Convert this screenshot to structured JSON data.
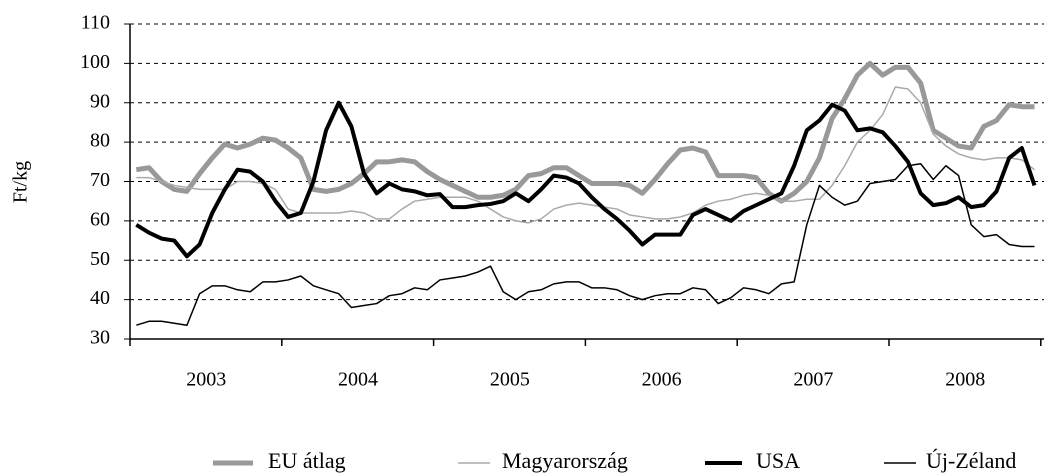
{
  "chart_data": {
    "type": "line",
    "y_label": "Ft/kg",
    "categories": [
      null,
      null,
      null,
      null,
      null,
      null,
      "2003",
      null,
      null,
      null,
      null,
      null,
      null,
      null,
      null,
      null,
      null,
      null,
      "2004",
      null,
      null,
      null,
      null,
      null,
      null,
      null,
      null,
      null,
      null,
      null,
      "2005",
      null,
      null,
      null,
      null,
      null,
      null,
      null,
      null,
      null,
      null,
      null,
      "2006",
      null,
      null,
      null,
      null,
      null,
      null,
      null,
      null,
      null,
      null,
      null,
      "2007",
      null,
      null,
      null,
      null,
      null,
      null,
      null,
      null,
      null,
      null,
      null,
      "2008",
      null,
      null,
      null,
      null,
      null
    ],
    "ylim": [
      30,
      110
    ],
    "yticks": [
      30,
      40,
      50,
      60,
      70,
      80,
      90,
      100,
      110
    ],
    "grid": true,
    "legend": "bottom",
    "series": [
      {
        "name": "EU átlag",
        "color": "#999999",
        "width": 5,
        "values": [
          73,
          73.5,
          70,
          68,
          67.5,
          72,
          76,
          79.5,
          78.5,
          79.5,
          81,
          80.5,
          78.5,
          76,
          68,
          67.5,
          68,
          69.5,
          72,
          75,
          75,
          75.5,
          75,
          72.5,
          70.5,
          69,
          67.5,
          66,
          66,
          66.5,
          68,
          71.5,
          72,
          73.5,
          73.5,
          71.5,
          69.5,
          69.5,
          69.5,
          69,
          67,
          70.5,
          74.5,
          78,
          78.5,
          77.5,
          71.5,
          71.5,
          71.5,
          71,
          67,
          65,
          67,
          70,
          76,
          86,
          91,
          97,
          100,
          97,
          99,
          99,
          95,
          83,
          81,
          79,
          78.5,
          84,
          85.5,
          89.5,
          89,
          89
        ]
      },
      {
        "name": "Magyarország",
        "color": "#aaaaaa",
        "width": 1.5,
        "values": [
          71,
          71,
          70,
          69,
          68.5,
          68,
          68,
          68,
          70,
          70,
          69.5,
          68,
          63,
          62,
          62,
          62,
          62,
          62.5,
          62,
          60.5,
          60.5,
          63,
          65,
          65.5,
          66,
          66,
          66,
          65,
          63,
          61,
          60,
          59.5,
          60.5,
          63,
          64,
          64.5,
          64,
          63.5,
          63,
          61.5,
          61,
          60.5,
          60.5,
          61,
          62,
          64,
          65,
          65.5,
          66.5,
          67,
          66.5,
          65,
          65,
          65.5,
          65.5,
          69,
          74,
          80,
          83,
          87,
          94,
          93.5,
          90,
          82,
          79,
          77,
          76,
          75.5,
          76,
          76,
          75.5,
          73
        ]
      },
      {
        "name": "USA",
        "color": "#000000",
        "width": 4,
        "values": [
          59,
          57,
          55.5,
          55,
          51,
          54,
          62,
          68,
          73,
          72.5,
          70,
          65,
          61,
          62,
          70,
          83,
          90,
          84,
          72,
          67,
          69.5,
          68,
          67.5,
          66.5,
          66.8,
          63.5,
          63.5,
          64,
          64.3,
          65,
          67,
          65,
          68,
          71.5,
          71,
          69.5,
          66,
          63,
          60.5,
          57.5,
          54,
          56.5,
          56.5,
          56.5,
          61.5,
          63,
          61.5,
          60,
          62.5,
          64,
          65.5,
          67,
          74,
          83,
          85.5,
          89.5,
          88,
          83,
          83.5,
          82.5,
          79,
          75,
          67,
          64,
          64.5,
          66,
          63.5,
          64,
          67.5,
          76,
          78.5,
          69
        ]
      },
      {
        "name": "Új-Zéland",
        "color": "#000000",
        "width": 1.5,
        "values": [
          33.5,
          34.5,
          34.5,
          34,
          33.5,
          41.5,
          43.5,
          43.5,
          42.5,
          42,
          44.5,
          44.5,
          45,
          46,
          43.5,
          42.5,
          41.5,
          38,
          38.5,
          39,
          41,
          41.5,
          43,
          42.5,
          45,
          45.5,
          46,
          47,
          48.5,
          42,
          40,
          42,
          42.5,
          44,
          44.5,
          44.5,
          43,
          43,
          42.5,
          41,
          40,
          41,
          41.5,
          41.5,
          43,
          42.5,
          39,
          40.5,
          43,
          42.5,
          41.5,
          44,
          44.5,
          59,
          69,
          66,
          64,
          65,
          69.5,
          70,
          70.5,
          74,
          74.5,
          70.5,
          74,
          71.5,
          59,
          56,
          56.5,
          54,
          53.5,
          53.5
        ]
      }
    ]
  }
}
